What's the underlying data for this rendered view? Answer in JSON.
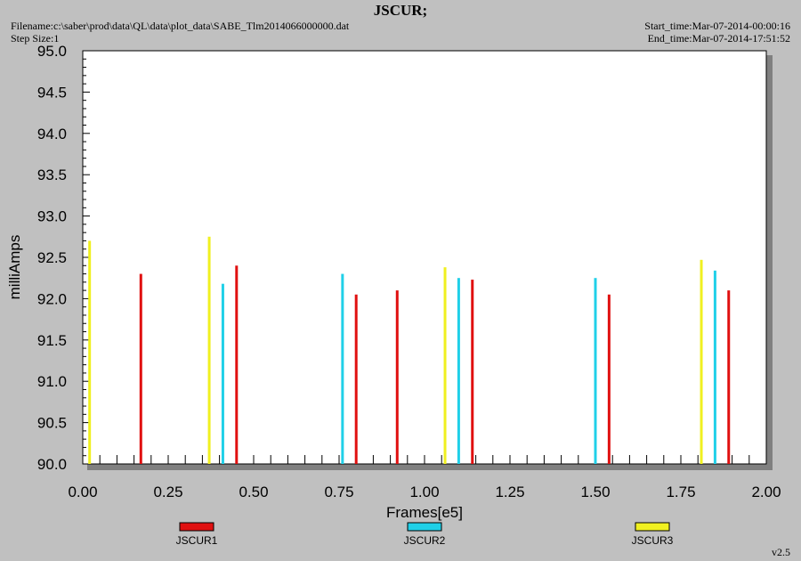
{
  "header": {
    "title": "JSCUR;",
    "filename": "Filename:c:\\saber\\prod\\data\\QL\\data\\plot_data\\SABE_Tlm2014066000000.dat",
    "step_size": "Step Size:1",
    "start_time": "Start_time:Mar-07-2014-00:00:16",
    "end_time": "End_time:Mar-07-2014-17:51:52"
  },
  "footer": {
    "version": "v2.5"
  },
  "colors": {
    "background": "#c0c0c0",
    "plot_area": "#ffffff",
    "JSCUR1": "#e01010",
    "JSCUR2": "#20d0e8",
    "JSCUR3": "#f0f020"
  },
  "chart_data": {
    "type": "bar",
    "xlabel": "Frames[e5]",
    "ylabel": "milliAmps",
    "xlim": [
      0.0,
      2.0
    ],
    "ylim": [
      90.0,
      95.0
    ],
    "x_tick_labels": [
      "0.00",
      "0.25",
      "0.50",
      "0.75",
      "1.00",
      "1.25",
      "1.50",
      "1.75",
      "2.00"
    ],
    "y_tick_labels": [
      "90.0",
      "90.5",
      "91.0",
      "91.5",
      "92.0",
      "92.5",
      "93.0",
      "93.5",
      "94.0",
      "94.5",
      "95.0"
    ],
    "grid": false,
    "legend_position": "bottom",
    "series": [
      {
        "name": "JSCUR1",
        "color": "#e01010",
        "points": [
          {
            "x": 0.17,
            "y": 92.3
          },
          {
            "x": 0.45,
            "y": 92.4
          },
          {
            "x": 0.8,
            "y": 92.05
          },
          {
            "x": 0.92,
            "y": 92.1
          },
          {
            "x": 1.14,
            "y": 92.23
          },
          {
            "x": 1.54,
            "y": 92.05
          },
          {
            "x": 1.89,
            "y": 92.1
          }
        ]
      },
      {
        "name": "JSCUR2",
        "color": "#20d0e8",
        "points": [
          {
            "x": 0.41,
            "y": 92.18
          },
          {
            "x": 0.76,
            "y": 92.3
          },
          {
            "x": 1.1,
            "y": 92.25
          },
          {
            "x": 1.5,
            "y": 92.25
          },
          {
            "x": 1.85,
            "y": 92.34
          }
        ]
      },
      {
        "name": "JSCUR3",
        "color": "#f0f020",
        "points": [
          {
            "x": 0.02,
            "y": 92.7
          },
          {
            "x": 0.37,
            "y": 92.75
          },
          {
            "x": 1.06,
            "y": 92.38
          },
          {
            "x": 1.81,
            "y": 92.47
          }
        ]
      }
    ]
  }
}
